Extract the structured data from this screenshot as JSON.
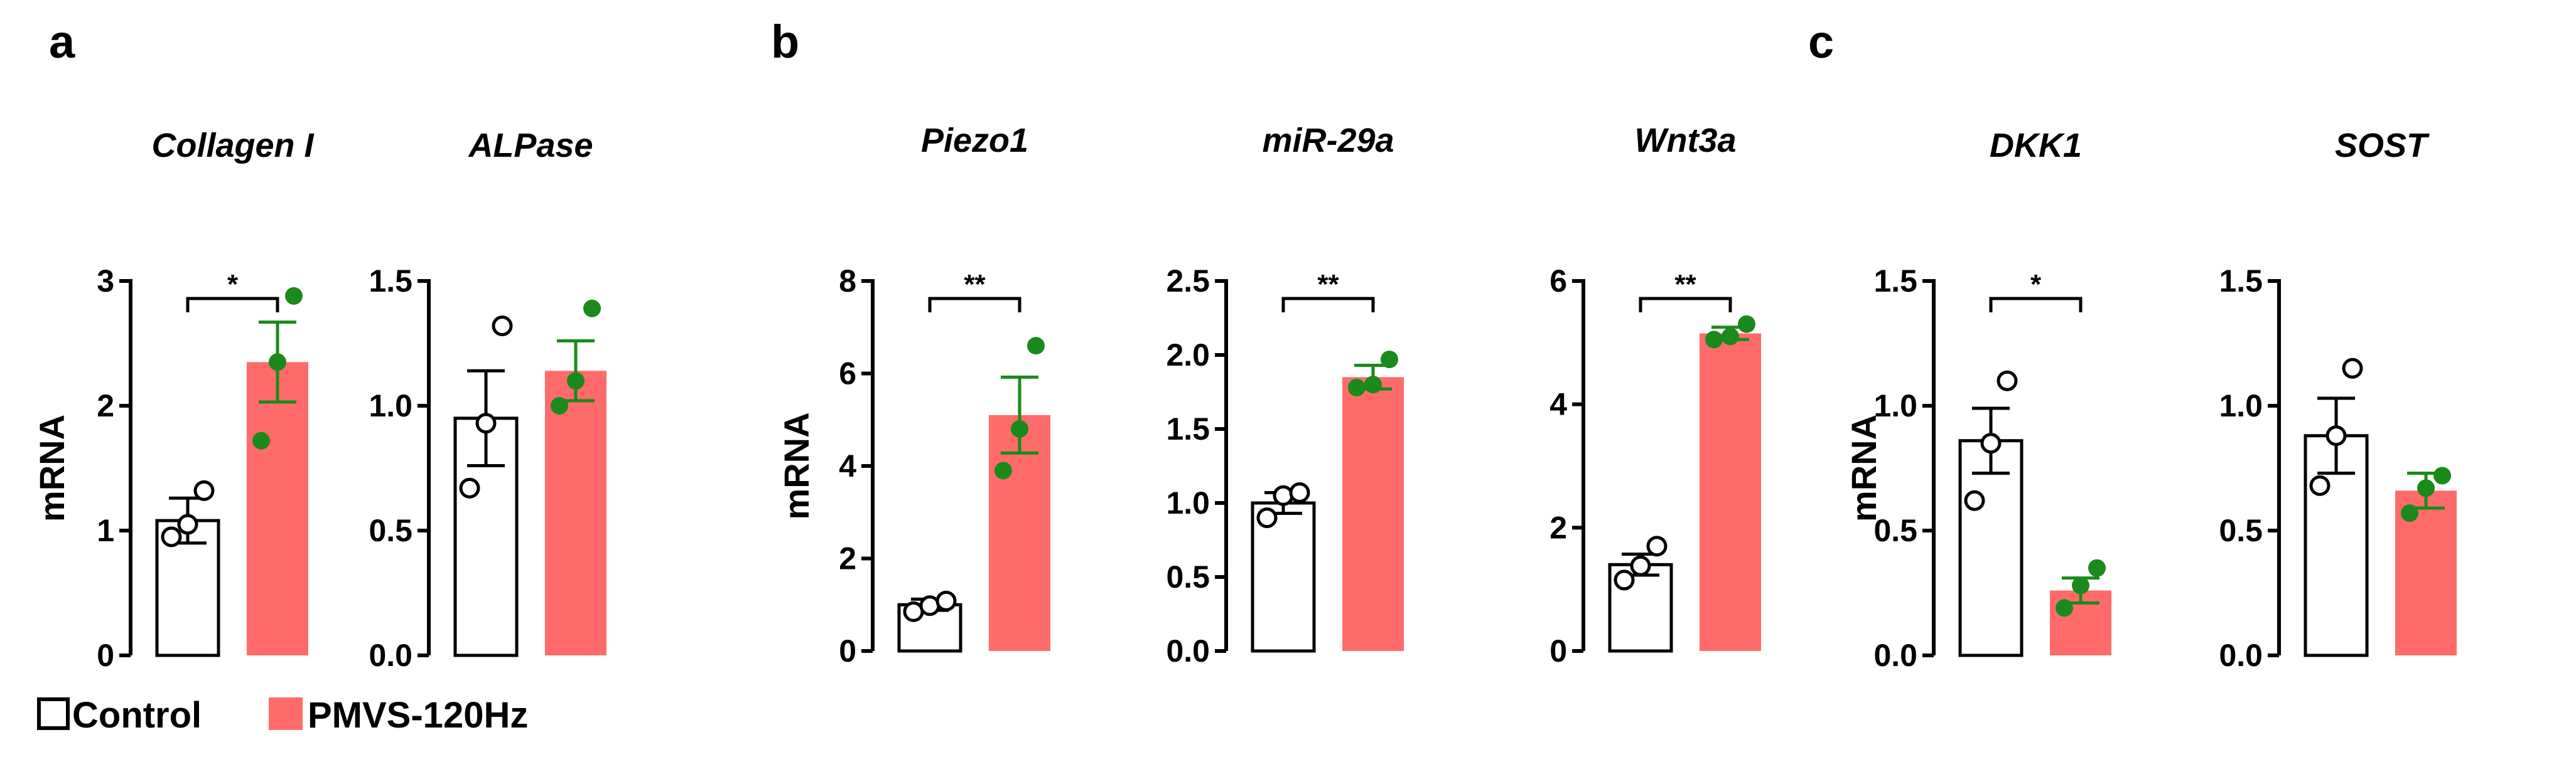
{
  "colors": {
    "control_fill": "#ffffff",
    "control_stroke": "#000000",
    "pmvs_fill": "#ff6b6b",
    "dot_green": "#1a8a1a",
    "errbar_pmvs": "#1a8a1a",
    "errbar_control": "#000000"
  },
  "legend": {
    "items": [
      {
        "label": "Control",
        "type": "control"
      },
      {
        "label": "PMVS-120Hz",
        "type": "pmvs"
      }
    ]
  },
  "panels": [
    {
      "letter": "a"
    },
    {
      "letter": "b"
    },
    {
      "letter": "c"
    }
  ],
  "chart_data": [
    {
      "type": "bar",
      "panel": "a",
      "title": "Collagen I",
      "ylabel": "mRNA",
      "categories": [
        "Control",
        "PMVS-120Hz"
      ],
      "ylim": [
        0,
        3
      ],
      "yticks": [
        0,
        1,
        2,
        3
      ],
      "tick_labels": [
        "0",
        "1",
        "2",
        "3"
      ],
      "values": [
        1.08,
        2.35
      ],
      "errors": [
        0.18,
        0.32
      ],
      "points": [
        [
          0.95,
          1.05,
          1.32
        ],
        [
          1.72,
          2.35,
          2.88
        ]
      ],
      "significance": "*"
    },
    {
      "type": "bar",
      "panel": "a",
      "title": "ALPase",
      "ylabel": "",
      "categories": [
        "Control",
        "PMVS-120Hz"
      ],
      "ylim": [
        0,
        1.5
      ],
      "yticks": [
        0,
        0.5,
        1.0,
        1.5
      ],
      "tick_labels": [
        "0.0",
        "0.5",
        "1.0",
        "1.5"
      ],
      "values": [
        0.95,
        1.14
      ],
      "errors": [
        0.19,
        0.12
      ],
      "points": [
        [
          0.67,
          0.93,
          1.32
        ],
        [
          1.0,
          1.1,
          1.39
        ]
      ],
      "significance": ""
    },
    {
      "type": "bar",
      "panel": "b",
      "title": "Piezo1",
      "ylabel": "mRNA",
      "categories": [
        "Control",
        "PMVS-120Hz"
      ],
      "ylim": [
        0,
        8
      ],
      "yticks": [
        0,
        2,
        4,
        6,
        8
      ],
      "tick_labels": [
        "0",
        "2",
        "4",
        "6",
        "8"
      ],
      "values": [
        1.0,
        5.1
      ],
      "errors": [
        0.12,
        0.82
      ],
      "points": [
        [
          0.85,
          0.98,
          1.08
        ],
        [
          3.9,
          4.8,
          6.6
        ]
      ],
      "significance": "**"
    },
    {
      "type": "bar",
      "panel": "b",
      "title": "miR-29a",
      "ylabel": "",
      "categories": [
        "Control",
        "PMVS-120Hz"
      ],
      "ylim": [
        0,
        2.5
      ],
      "yticks": [
        0,
        0.5,
        1.0,
        1.5,
        2.0,
        2.5
      ],
      "tick_labels": [
        "0.0",
        "0.5",
        "1.0",
        "1.5",
        "2.0",
        "2.5"
      ],
      "values": [
        1.0,
        1.85
      ],
      "errors": [
        0.07,
        0.08
      ],
      "points": [
        [
          0.9,
          1.05,
          1.07
        ],
        [
          1.78,
          1.8,
          1.97
        ]
      ],
      "significance": "**"
    },
    {
      "type": "bar",
      "panel": "b",
      "title": "Wnt3a",
      "ylabel": "",
      "categories": [
        "Control",
        "PMVS-120Hz"
      ],
      "ylim": [
        0,
        6
      ],
      "yticks": [
        0,
        2,
        4,
        6
      ],
      "tick_labels": [
        "0",
        "2",
        "4",
        "6"
      ],
      "values": [
        1.4,
        5.15
      ],
      "errors": [
        0.17,
        0.1
      ],
      "points": [
        [
          1.15,
          1.38,
          1.7
        ],
        [
          5.05,
          5.1,
          5.3
        ]
      ],
      "significance": "**"
    },
    {
      "type": "bar",
      "panel": "c",
      "title": "DKK1",
      "ylabel": "mRNA",
      "categories": [
        "Control",
        "PMVS-120Hz"
      ],
      "ylim": [
        0,
        1.5
      ],
      "yticks": [
        0,
        0.5,
        1.0,
        1.5
      ],
      "tick_labels": [
        "0.0",
        "0.5",
        "1.0",
        "1.5"
      ],
      "values": [
        0.86,
        0.26
      ],
      "errors": [
        0.13,
        0.05
      ],
      "points": [
        [
          0.62,
          0.85,
          1.1
        ],
        [
          0.19,
          0.28,
          0.35
        ]
      ],
      "significance": "*"
    },
    {
      "type": "bar",
      "panel": "c",
      "title": "SOST",
      "ylabel": "",
      "categories": [
        "Control",
        "PMVS-120Hz"
      ],
      "ylim": [
        0,
        1.5
      ],
      "yticks": [
        0,
        0.5,
        1.0,
        1.5
      ],
      "tick_labels": [
        "0.0",
        "0.5",
        "1.0",
        "1.5"
      ],
      "values": [
        0.88,
        0.66
      ],
      "errors": [
        0.15,
        0.07
      ],
      "points": [
        [
          0.68,
          0.88,
          1.15
        ],
        [
          0.57,
          0.67,
          0.72
        ]
      ],
      "significance": ""
    }
  ]
}
